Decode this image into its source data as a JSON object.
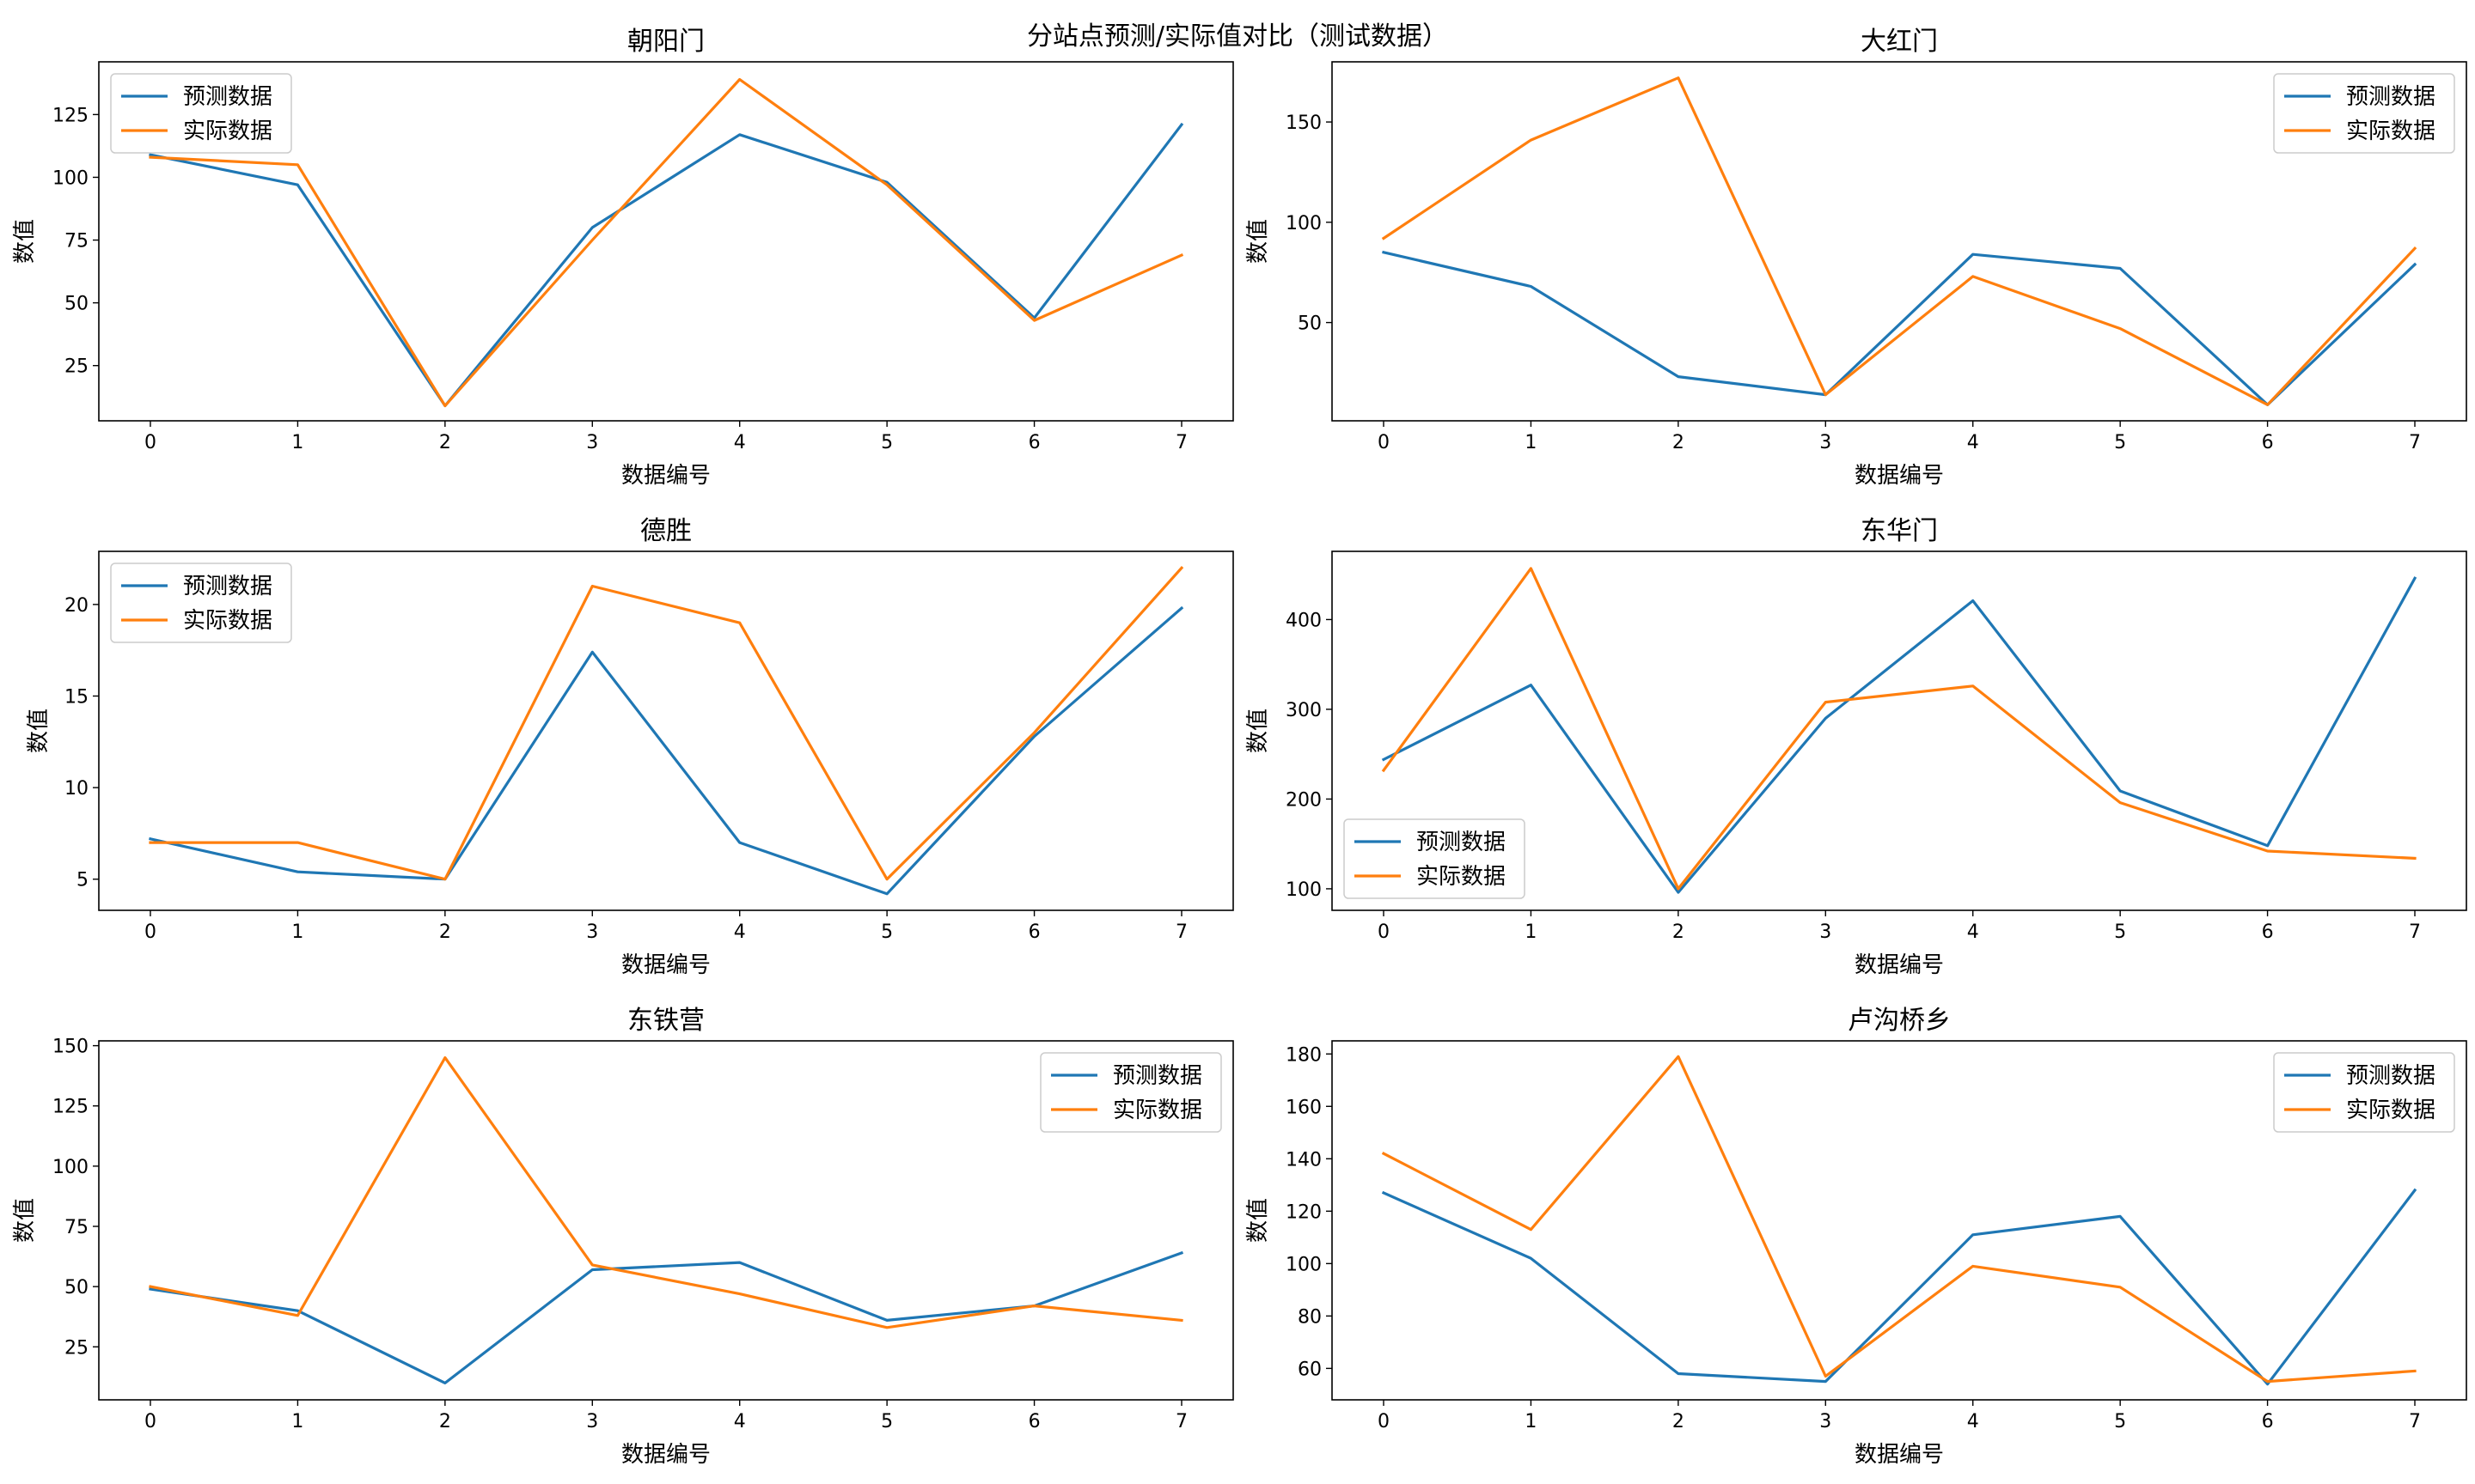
{
  "chart_data": {
    "type": "line",
    "title": "分站点预测/实际值对比（测试数据）",
    "xlabel": "数据编号",
    "ylabel": "数值",
    "legend_labels": [
      "预测数据",
      "实际数据"
    ],
    "colors": {
      "predicted": "#1f77b4",
      "actual": "#ff7f0e"
    },
    "x": [
      0,
      1,
      2,
      3,
      4,
      5,
      6,
      7
    ],
    "panels": [
      {
        "title": "朝阳门",
        "ylim": [
          3,
          146
        ],
        "yticks": [
          25,
          50,
          75,
          100,
          125
        ],
        "legend": "upper-left",
        "series": [
          {
            "name": "预测数据",
            "values": [
              109,
              97,
              9,
              80,
              117,
              98,
              44,
              121
            ]
          },
          {
            "name": "实际数据",
            "values": [
              108,
              105,
              9,
              75,
              139,
              97,
              43,
              69
            ]
          }
        ]
      },
      {
        "title": "大红门",
        "ylim": [
          1,
          180
        ],
        "yticks": [
          50,
          100,
          150
        ],
        "legend": "upper-right",
        "series": [
          {
            "name": "预测数据",
            "values": [
              85,
              68,
              23,
              14,
              84,
              77,
              9,
              79
            ]
          },
          {
            "name": "实际数据",
            "values": [
              92,
              141,
              172,
              14,
              73,
              47,
              9,
              87
            ]
          }
        ]
      },
      {
        "title": "德胜",
        "ylim": [
          3.3,
          22.9
        ],
        "yticks": [
          5,
          10,
          15,
          20
        ],
        "legend": "upper-left",
        "series": [
          {
            "name": "预测数据",
            "values": [
              7.2,
              5.4,
              5.0,
              17.4,
              7.0,
              4.2,
              12.8,
              19.8
            ]
          },
          {
            "name": "实际数据",
            "values": [
              7.0,
              7.0,
              5.0,
              21.0,
              19.0,
              5.0,
              13.0,
              22.0
            ]
          }
        ]
      },
      {
        "title": "东华门",
        "ylim": [
          76,
          476
        ],
        "yticks": [
          100,
          200,
          300,
          400
        ],
        "legend": "lower-left",
        "series": [
          {
            "name": "预测数据",
            "values": [
              244,
              327,
              96,
              290,
              421,
              209,
              148,
              446
            ]
          },
          {
            "name": "实际数据",
            "values": [
              232,
              457,
              100,
              308,
              326,
              196,
              142,
              134
            ]
          }
        ]
      },
      {
        "title": "东铁营",
        "ylim": [
          3,
          152
        ],
        "yticks": [
          25,
          50,
          75,
          100,
          125,
          150
        ],
        "legend": "upper-right",
        "series": [
          {
            "name": "预测数据",
            "values": [
              49,
              40,
              10,
              57,
              60,
              36,
              42,
              64
            ]
          },
          {
            "name": "实际数据",
            "values": [
              50,
              38,
              145,
              59,
              47,
              33,
              42,
              36
            ]
          }
        ]
      },
      {
        "title": "卢沟桥乡",
        "ylim": [
          48,
          185
        ],
        "yticks": [
          60,
          80,
          100,
          120,
          140,
          160,
          180
        ],
        "legend": "upper-right",
        "series": [
          {
            "name": "预测数据",
            "values": [
              127,
              102,
              58,
              55,
              111,
              118,
              54,
              128
            ]
          },
          {
            "name": "实际数据",
            "values": [
              142,
              113,
              179,
              57,
              99,
              91,
              55,
              59
            ]
          }
        ]
      }
    ]
  }
}
